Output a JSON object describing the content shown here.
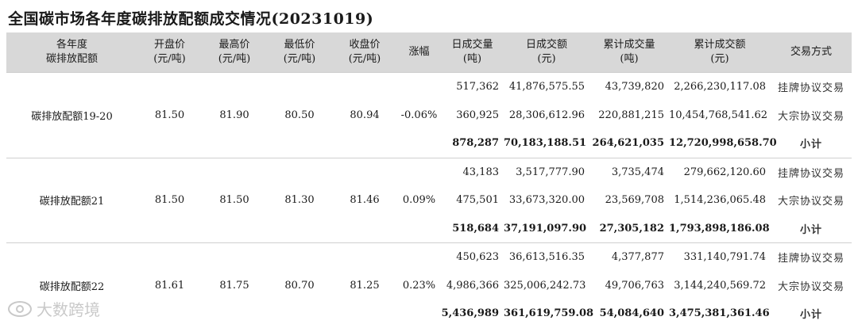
{
  "title": "全国碳市场各年度碳排放配额成交情况(20231019)",
  "headers": [
    "各年度\n碳排放配额",
    "开盘价\n(元/吨)",
    "最高价\n(元/吨)",
    "最低价\n(元/吨)",
    "收盘价\n(元/吨)",
    "涨幅",
    "日成交量\n(吨)",
    "日成交额\n(元)",
    "累计成交量\n(吨)",
    "累计成交额\n(元)",
    "交易方式"
  ],
  "groups": [
    {
      "name": "碳排放配额19-20",
      "open": "81.50",
      "high": "81.90",
      "low": "80.50",
      "close": "80.94",
      "change": "-0.06%",
      "rows": [
        {
          "daily_vol": "517,362",
          "daily_amt": "41,876,575.55",
          "cum_vol": "43,739,820",
          "cum_amt": "2,266,230,117.08",
          "method": "挂牌协议交易"
        },
        {
          "daily_vol": "360,925",
          "daily_amt": "28,306,612.96",
          "cum_vol": "220,881,215",
          "cum_amt": "10,454,768,541.62",
          "method": "大宗协议交易"
        },
        {
          "daily_vol": "878,287",
          "daily_amt": "70,183,188.51",
          "cum_vol": "264,621,035",
          "cum_amt": "12,720,998,658.70",
          "method": "小计"
        }
      ]
    },
    {
      "name": "碳排放配额21",
      "open": "81.50",
      "high": "81.50",
      "low": "81.30",
      "close": "81.46",
      "change": "0.09%",
      "rows": [
        {
          "daily_vol": "43,183",
          "daily_amt": "3,517,777.90",
          "cum_vol": "3,735,474",
          "cum_amt": "279,662,120.60",
          "method": "挂牌协议交易"
        },
        {
          "daily_vol": "475,501",
          "daily_amt": "33,673,320.00",
          "cum_vol": "23,569,708",
          "cum_amt": "1,514,236,065.48",
          "method": "大宗协议交易"
        },
        {
          "daily_vol": "518,684",
          "daily_amt": "37,191,097.90",
          "cum_vol": "27,305,182",
          "cum_amt": "1,793,898,186.08",
          "method": "小计"
        }
      ]
    },
    {
      "name": "碳排放配额22",
      "open": "81.61",
      "high": "81.75",
      "low": "80.70",
      "close": "81.25",
      "change": "0.23%",
      "rows": [
        {
          "daily_vol": "450,623",
          "daily_amt": "36,613,516.35",
          "cum_vol": "4,377,877",
          "cum_amt": "331,140,791.74",
          "method": "挂牌协议交易"
        },
        {
          "daily_vol": "4,986,366",
          "daily_amt": "325,006,242.73",
          "cum_vol": "49,706,763",
          "cum_amt": "3,144,240,569.72",
          "method": "大宗协议交易"
        },
        {
          "daily_vol": "5,436,989",
          "daily_amt": "361,619,759.08",
          "cum_vol": "54,084,640",
          "cum_amt": "3,475,381,361.46",
          "method": "小计"
        }
      ]
    }
  ],
  "watermark": "大数跨境"
}
